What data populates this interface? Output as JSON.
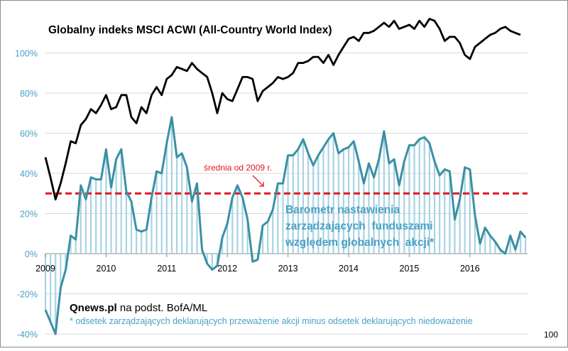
{
  "chart_data": {
    "type": "line",
    "title": "Globalny indeks MSCI ACWI (All-Country World Index)",
    "ylim": [
      -40,
      120
    ],
    "yticks": [
      -40,
      -20,
      0,
      20,
      40,
      60,
      80,
      100
    ],
    "ytick_labels": [
      "-40%",
      "-20%",
      "0%",
      "20%",
      "40%",
      "60%",
      "80%",
      "100%"
    ],
    "xlim": [
      2009.0,
      2016.95
    ],
    "x_tick_labels": [
      "2009",
      "2010",
      "2011",
      "2012",
      "2013",
      "2014",
      "2015",
      "2016"
    ],
    "x_tick_values": [
      2009,
      2010,
      2011,
      2012,
      2013,
      2014,
      2015,
      2016
    ],
    "start_year": 2009,
    "months_per_year": 12,
    "series": [
      {
        "name": "MSCI ACWI",
        "color": "#000000",
        "values": [
          48,
          38,
          27,
          35,
          45,
          56,
          55,
          64,
          67,
          72,
          70,
          74,
          79,
          72,
          73,
          79,
          79,
          68,
          65,
          73,
          70,
          79,
          83,
          79,
          87,
          89,
          93,
          92,
          91,
          95,
          92,
          90,
          88,
          80,
          70,
          80,
          77,
          76,
          82,
          88,
          88,
          87,
          76,
          81,
          83,
          85,
          88,
          87,
          88,
          90,
          95,
          95,
          96,
          98,
          98,
          95,
          99,
          94,
          99,
          103,
          107,
          108,
          106,
          110,
          110,
          111,
          113,
          115,
          113,
          116,
          112,
          113,
          114,
          112,
          116,
          113,
          117,
          116,
          112,
          106,
          108,
          108,
          105,
          99,
          97,
          103,
          105,
          107,
          109,
          110,
          112,
          113,
          111,
          110,
          109
        ]
      },
      {
        "name": "Barometr nastawienia zarządzających funduszami względem globalnych akcji",
        "color": "#3a90a4",
        "values": [
          -28,
          -34,
          -40,
          -17,
          -8,
          9,
          7,
          34,
          27,
          38,
          37,
          37,
          52,
          33,
          47,
          52,
          31,
          26,
          12,
          11,
          12,
          28,
          41,
          40,
          55,
          68,
          48,
          50,
          43,
          26,
          35,
          2,
          -5,
          -8,
          -6,
          8,
          15,
          28,
          34,
          28,
          17,
          -4,
          -3,
          14,
          16,
          22,
          35,
          35,
          49,
          49,
          52,
          57,
          50,
          44,
          49,
          53,
          57,
          60,
          50,
          52,
          53,
          56,
          46,
          35,
          45,
          38,
          47,
          61,
          45,
          47,
          34,
          46,
          54,
          54,
          57,
          58,
          55,
          46,
          39,
          42,
          41,
          17,
          27,
          43,
          42,
          19,
          5,
          13,
          9,
          6,
          2,
          0,
          9,
          2,
          11,
          8
        ]
      }
    ],
    "reference_line": {
      "value": 30,
      "label": "średnia od 2009 r.",
      "color": "#e3161e"
    },
    "barometer_label": [
      "Barometr nastawienia",
      "zarządzających  funduszami",
      "względem globalnych  akcji*"
    ],
    "source": {
      "brand": "Qnews.pl",
      "text": " na podst. BofA/ML"
    },
    "footnote": "* odsetek zarządzających deklarujących przeważenie akcji minus odsetek deklarujących niedoważenie",
    "corner_label": "100",
    "colors": {
      "axis_text": "#4aa1c4",
      "barometer": "#3a90a4",
      "bars": "#a8d3e3",
      "reference": "#e3161e",
      "index": "#000000"
    }
  }
}
